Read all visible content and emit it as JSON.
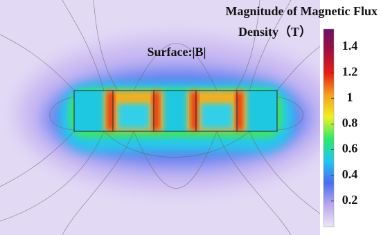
{
  "chart_data": {
    "type": "field",
    "title_lines": [
      "Magnitude of Magnetic Flux",
      "Density（T）"
    ],
    "subtitle": "Surface:|B|",
    "clim": [
      0,
      1.54
    ],
    "cticks": [
      0.2,
      0.4,
      0.6,
      0.8,
      1,
      1.2,
      1.4
    ],
    "colormap": [
      "#ebe6f7",
      "#b9a8ef",
      "#4a6cf0",
      "#1ec8f0",
      "#2ee86a",
      "#f0f020",
      "#f5a020",
      "#e81e14",
      "#a01040",
      "#6a1066"
    ]
  }
}
